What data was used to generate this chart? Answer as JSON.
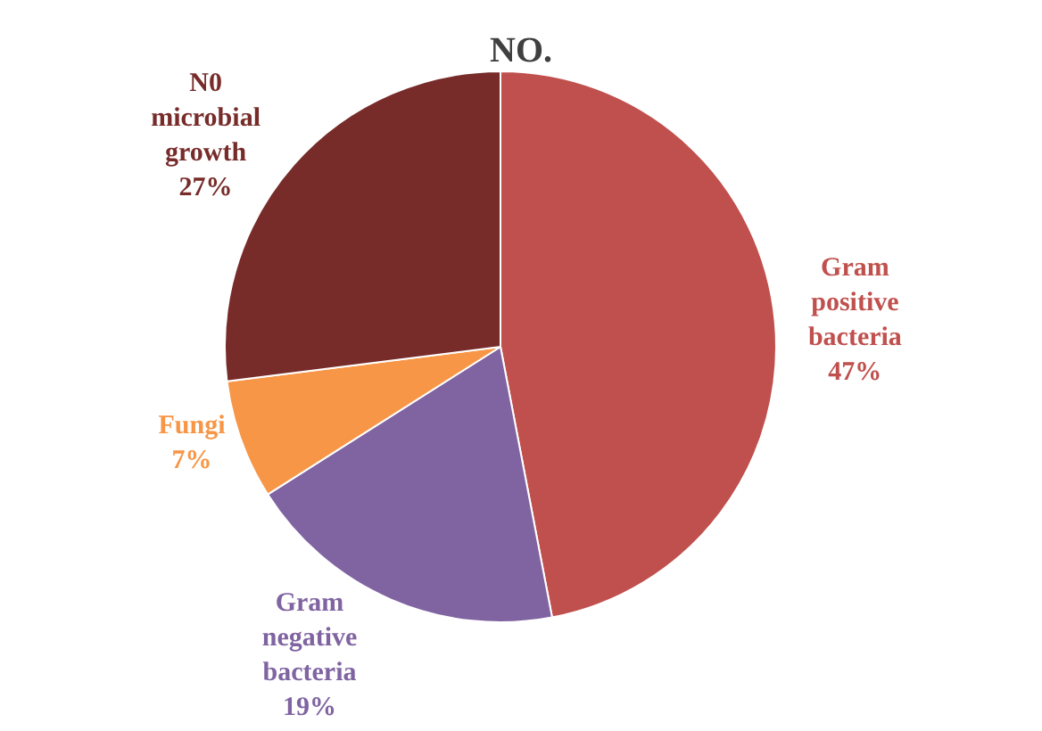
{
  "chart_data": {
    "type": "pie",
    "title": "NO.",
    "categories": [
      "Gram positive bacteria",
      "Gram negative bacteria",
      "Fungi",
      "N0 microbial growth"
    ],
    "values": [
      47,
      19,
      7,
      27
    ],
    "value_labels": [
      "47%",
      "19%",
      "7%",
      "27%"
    ],
    "colors": [
      "#c0504d",
      "#8064a2",
      "#f79646",
      "#772c2a"
    ],
    "legend": false
  }
}
